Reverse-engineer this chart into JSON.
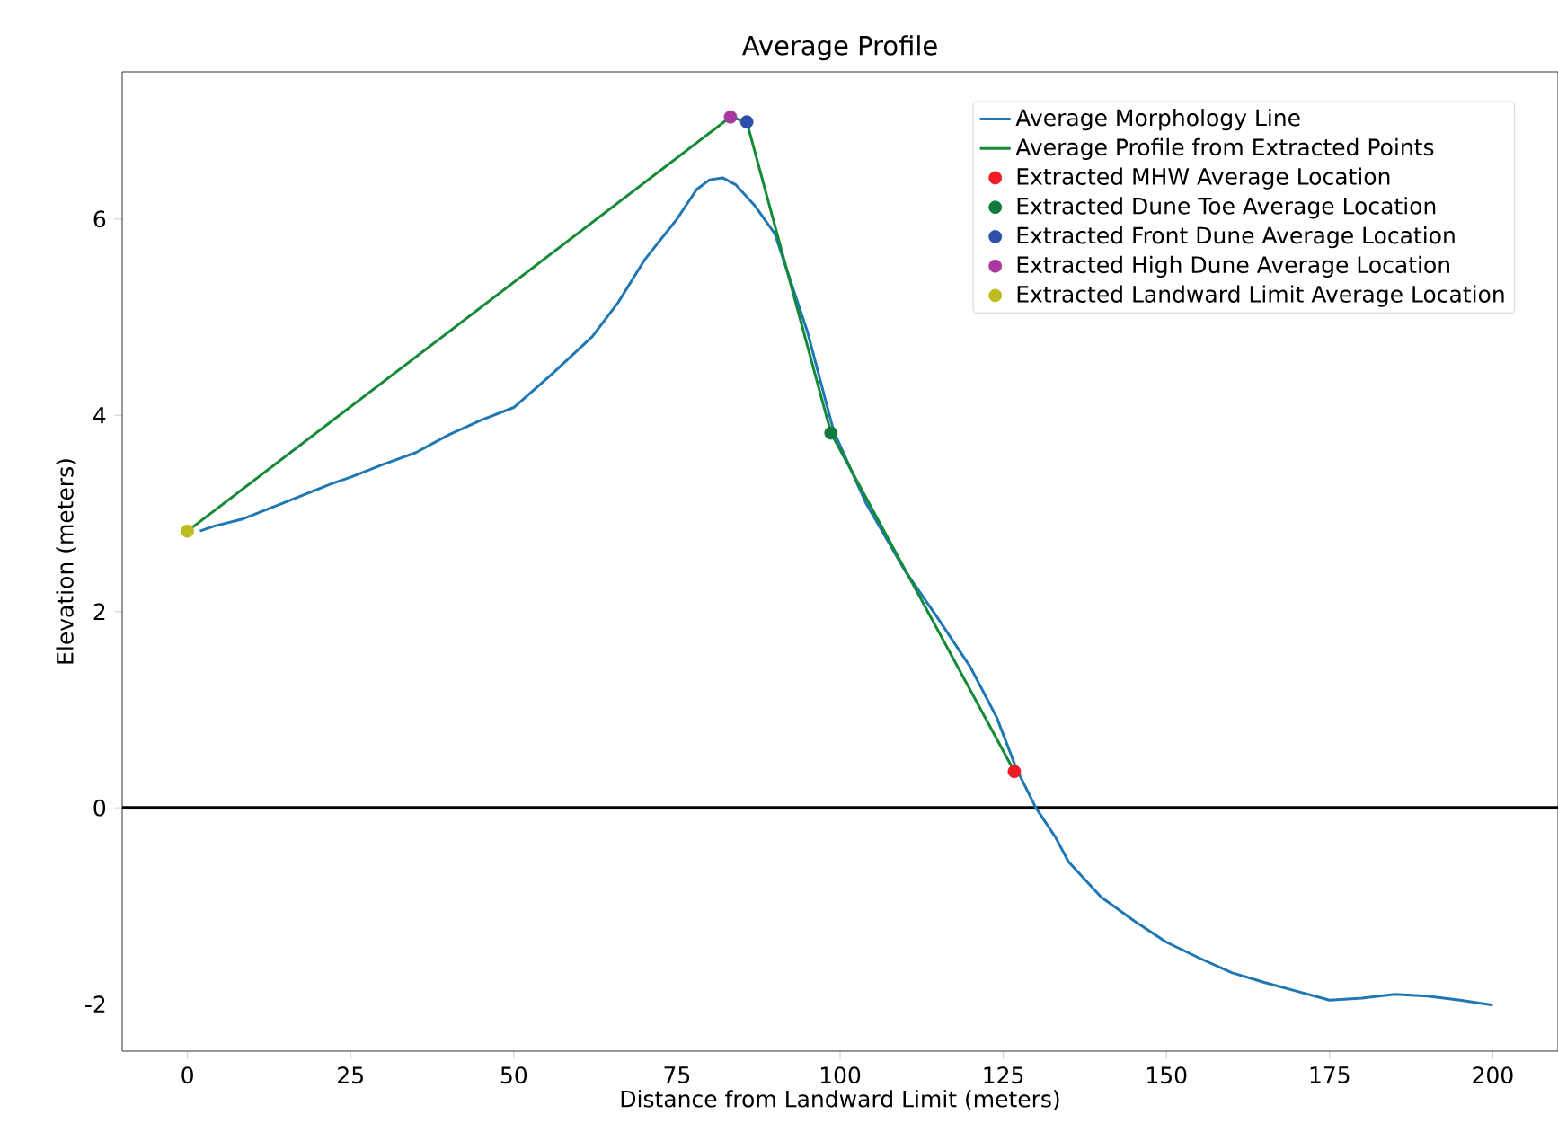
{
  "chart_data": {
    "type": "line",
    "title": "Average Profile",
    "xlabel": "Distance from Landward Limit (meters)",
    "ylabel": "Elevation (meters)",
    "xlim": [
      -10,
      210
    ],
    "ylim": [
      -2.48,
      7.5
    ],
    "xticks": [
      0,
      25,
      50,
      75,
      100,
      125,
      150,
      175,
      200
    ],
    "yticks": [
      -2,
      0,
      2,
      4,
      6
    ],
    "grid": false,
    "legend": "top right",
    "ref_lines": [
      {
        "axis": "y",
        "value": 0,
        "color": "#000000"
      }
    ],
    "series": [
      {
        "name": "Average Morphology Line",
        "color": "#1f77b4",
        "marker": "none",
        "x": [
          1.9,
          4.1,
          8.3,
          15.2,
          22,
          25,
          30,
          35,
          40,
          45,
          50,
          56,
          62,
          66,
          70,
          75,
          78,
          80,
          82,
          84,
          87,
          90,
          95,
          99,
          104,
          110,
          115,
          120,
          124,
          127,
          130,
          133,
          135,
          140,
          145,
          150,
          155,
          160,
          165,
          170,
          175,
          180,
          185,
          190,
          195,
          200
        ],
        "values": [
          2.82,
          2.87,
          2.94,
          3.12,
          3.3,
          3.37,
          3.5,
          3.62,
          3.8,
          3.95,
          4.08,
          4.43,
          4.8,
          5.15,
          5.58,
          6.0,
          6.3,
          6.4,
          6.42,
          6.35,
          6.13,
          5.85,
          4.85,
          3.84,
          3.1,
          2.41,
          1.93,
          1.43,
          0.92,
          0.4,
          0.0,
          -0.3,
          -0.55,
          -0.91,
          -1.15,
          -1.37,
          -1.53,
          -1.68,
          -1.78,
          -1.87,
          -1.96,
          -1.94,
          -1.9,
          -1.92,
          -1.96,
          -2.01
        ]
      },
      {
        "name": "Average Profile from Extracted Points",
        "color": "#138a36",
        "marker": "none",
        "x": [
          0,
          83.2,
          85.7,
          98.6,
          126.7
        ],
        "values": [
          2.82,
          7.04,
          6.99,
          3.82,
          0.37
        ]
      },
      {
        "name": "Extracted MHW Average Location",
        "type": "scatter",
        "color": "#ee1c25",
        "marker": "circle",
        "x": [
          126.7
        ],
        "values": [
          0.37
        ]
      },
      {
        "name": "Extracted Dune Toe Average Location",
        "type": "scatter",
        "color": "#0e7b3c",
        "marker": "circle",
        "x": [
          98.6
        ],
        "values": [
          3.82
        ]
      },
      {
        "name": "Extracted Front Dune Average Location",
        "type": "scatter",
        "color": "#2b4ea6",
        "marker": "circle",
        "x": [
          85.7
        ],
        "values": [
          6.99
        ]
      },
      {
        "name": "Extracted High Dune Average Location",
        "type": "scatter",
        "color": "#a8399e",
        "marker": "circle",
        "x": [
          83.2
        ],
        "values": [
          7.04
        ]
      },
      {
        "name": "Extracted Landward Limit Average Location",
        "type": "scatter",
        "color": "#bcbd22",
        "marker": "circle",
        "x": [
          0
        ],
        "values": [
          2.82
        ]
      }
    ]
  }
}
